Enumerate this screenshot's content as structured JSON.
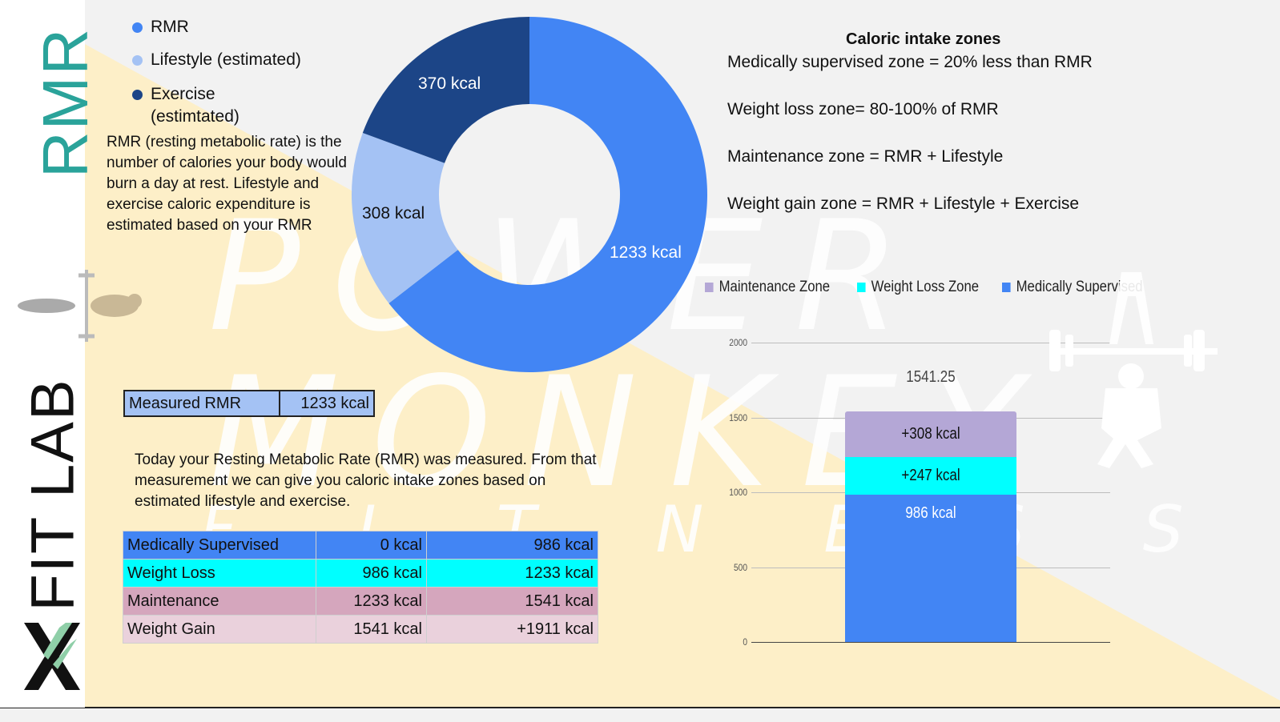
{
  "sidebar": {
    "rmr_text": "RMR",
    "logo_mark": "X",
    "fitlab_text": "FIT LAB"
  },
  "watermark": {
    "brand_line1": "POWER",
    "brand_line2": "MONKEY",
    "brand_line3": "FITNESS"
  },
  "donut": {
    "legend": [
      {
        "label": "RMR",
        "color": "#4285f4"
      },
      {
        "label": "Lifestyle (estimated)",
        "color": "#a4c2f4"
      },
      {
        "label": "Exercise",
        "label2": "(estimtated)",
        "color": "#1c4587"
      }
    ],
    "segments": [
      {
        "label": "1233 kcal",
        "value": 1233,
        "color": "#4285f4"
      },
      {
        "label": "308 kcal",
        "value": 308,
        "color": "#a4c2f4"
      },
      {
        "label": "370 kcal",
        "value": 370,
        "color": "#1c4587"
      }
    ]
  },
  "description": "RMR (resting metabolic rate) is the number of calories your body would burn a day at rest. Lifestyle and exercise caloric expenditure is estimated based on your RMR",
  "measured": {
    "label": "Measured RMR",
    "value": "1233 kcal"
  },
  "today_text": "Today your Resting Metabolic Rate (RMR) was measured. From that measurement we can give you caloric intake zones based on estimated lifestyle and exercise.",
  "zones_table": [
    {
      "name": "Medically Supervised",
      "from": "0 kcal",
      "to": "986 kcal",
      "c_name": "#4285f4",
      "c_from": "#4285f4",
      "c_to": "#4285f4"
    },
    {
      "name": "Weight Loss",
      "from": "986 kcal",
      "to": "1233 kcal",
      "c_name": "#00ffff",
      "c_from": "#00ffff",
      "c_to": "#00ffff"
    },
    {
      "name": "Maintenance",
      "from": "1233 kcal",
      "to": "1541 kcal",
      "c_name": "#d5a6bd",
      "c_from": "#d5a6bd",
      "c_to": "#d5a6bd"
    },
    {
      "name": "Weight Gain",
      "from": "1541 kcal",
      "to": "+1911 kcal",
      "c_name": "#ead1dc",
      "c_from": "#ead1dc",
      "c_to": "#ead1dc"
    }
  ],
  "caloric_zones": {
    "title": "Caloric intake zones",
    "lines": [
      "Medically supervised zone = 20% less than RMR",
      "Weight loss zone= 80-100% of RMR",
      "Maintenance zone = RMR + Lifestyle",
      "Weight gain zone = RMR + Lifestyle + Exercise"
    ]
  },
  "chart_data": {
    "type": "bar",
    "stacked": true,
    "categories": [
      ""
    ],
    "series": [
      {
        "name": "Medically Supervised",
        "values": [
          986
        ],
        "label": "986 kcal",
        "color": "#4285f4"
      },
      {
        "name": "Weight Loss Zone",
        "values": [
          247
        ],
        "label": "+247 kcal",
        "color": "#00ffff"
      },
      {
        "name": "Maintenance Zone",
        "values": [
          308.25
        ],
        "label": "+308 kcal",
        "color": "#b4a7d6"
      }
    ],
    "legend": [
      "Maintenance Zone",
      "Weight Loss Zone",
      "Medically Supervised"
    ],
    "legend_colors": [
      "#b4a7d6",
      "#00ffff",
      "#4285f4"
    ],
    "total_label": "1541.25",
    "yticks": [
      "0",
      "500",
      "1000",
      "1500",
      "2000"
    ],
    "ylim": [
      0,
      2000
    ],
    "grid": true,
    "legend_position": "top"
  }
}
